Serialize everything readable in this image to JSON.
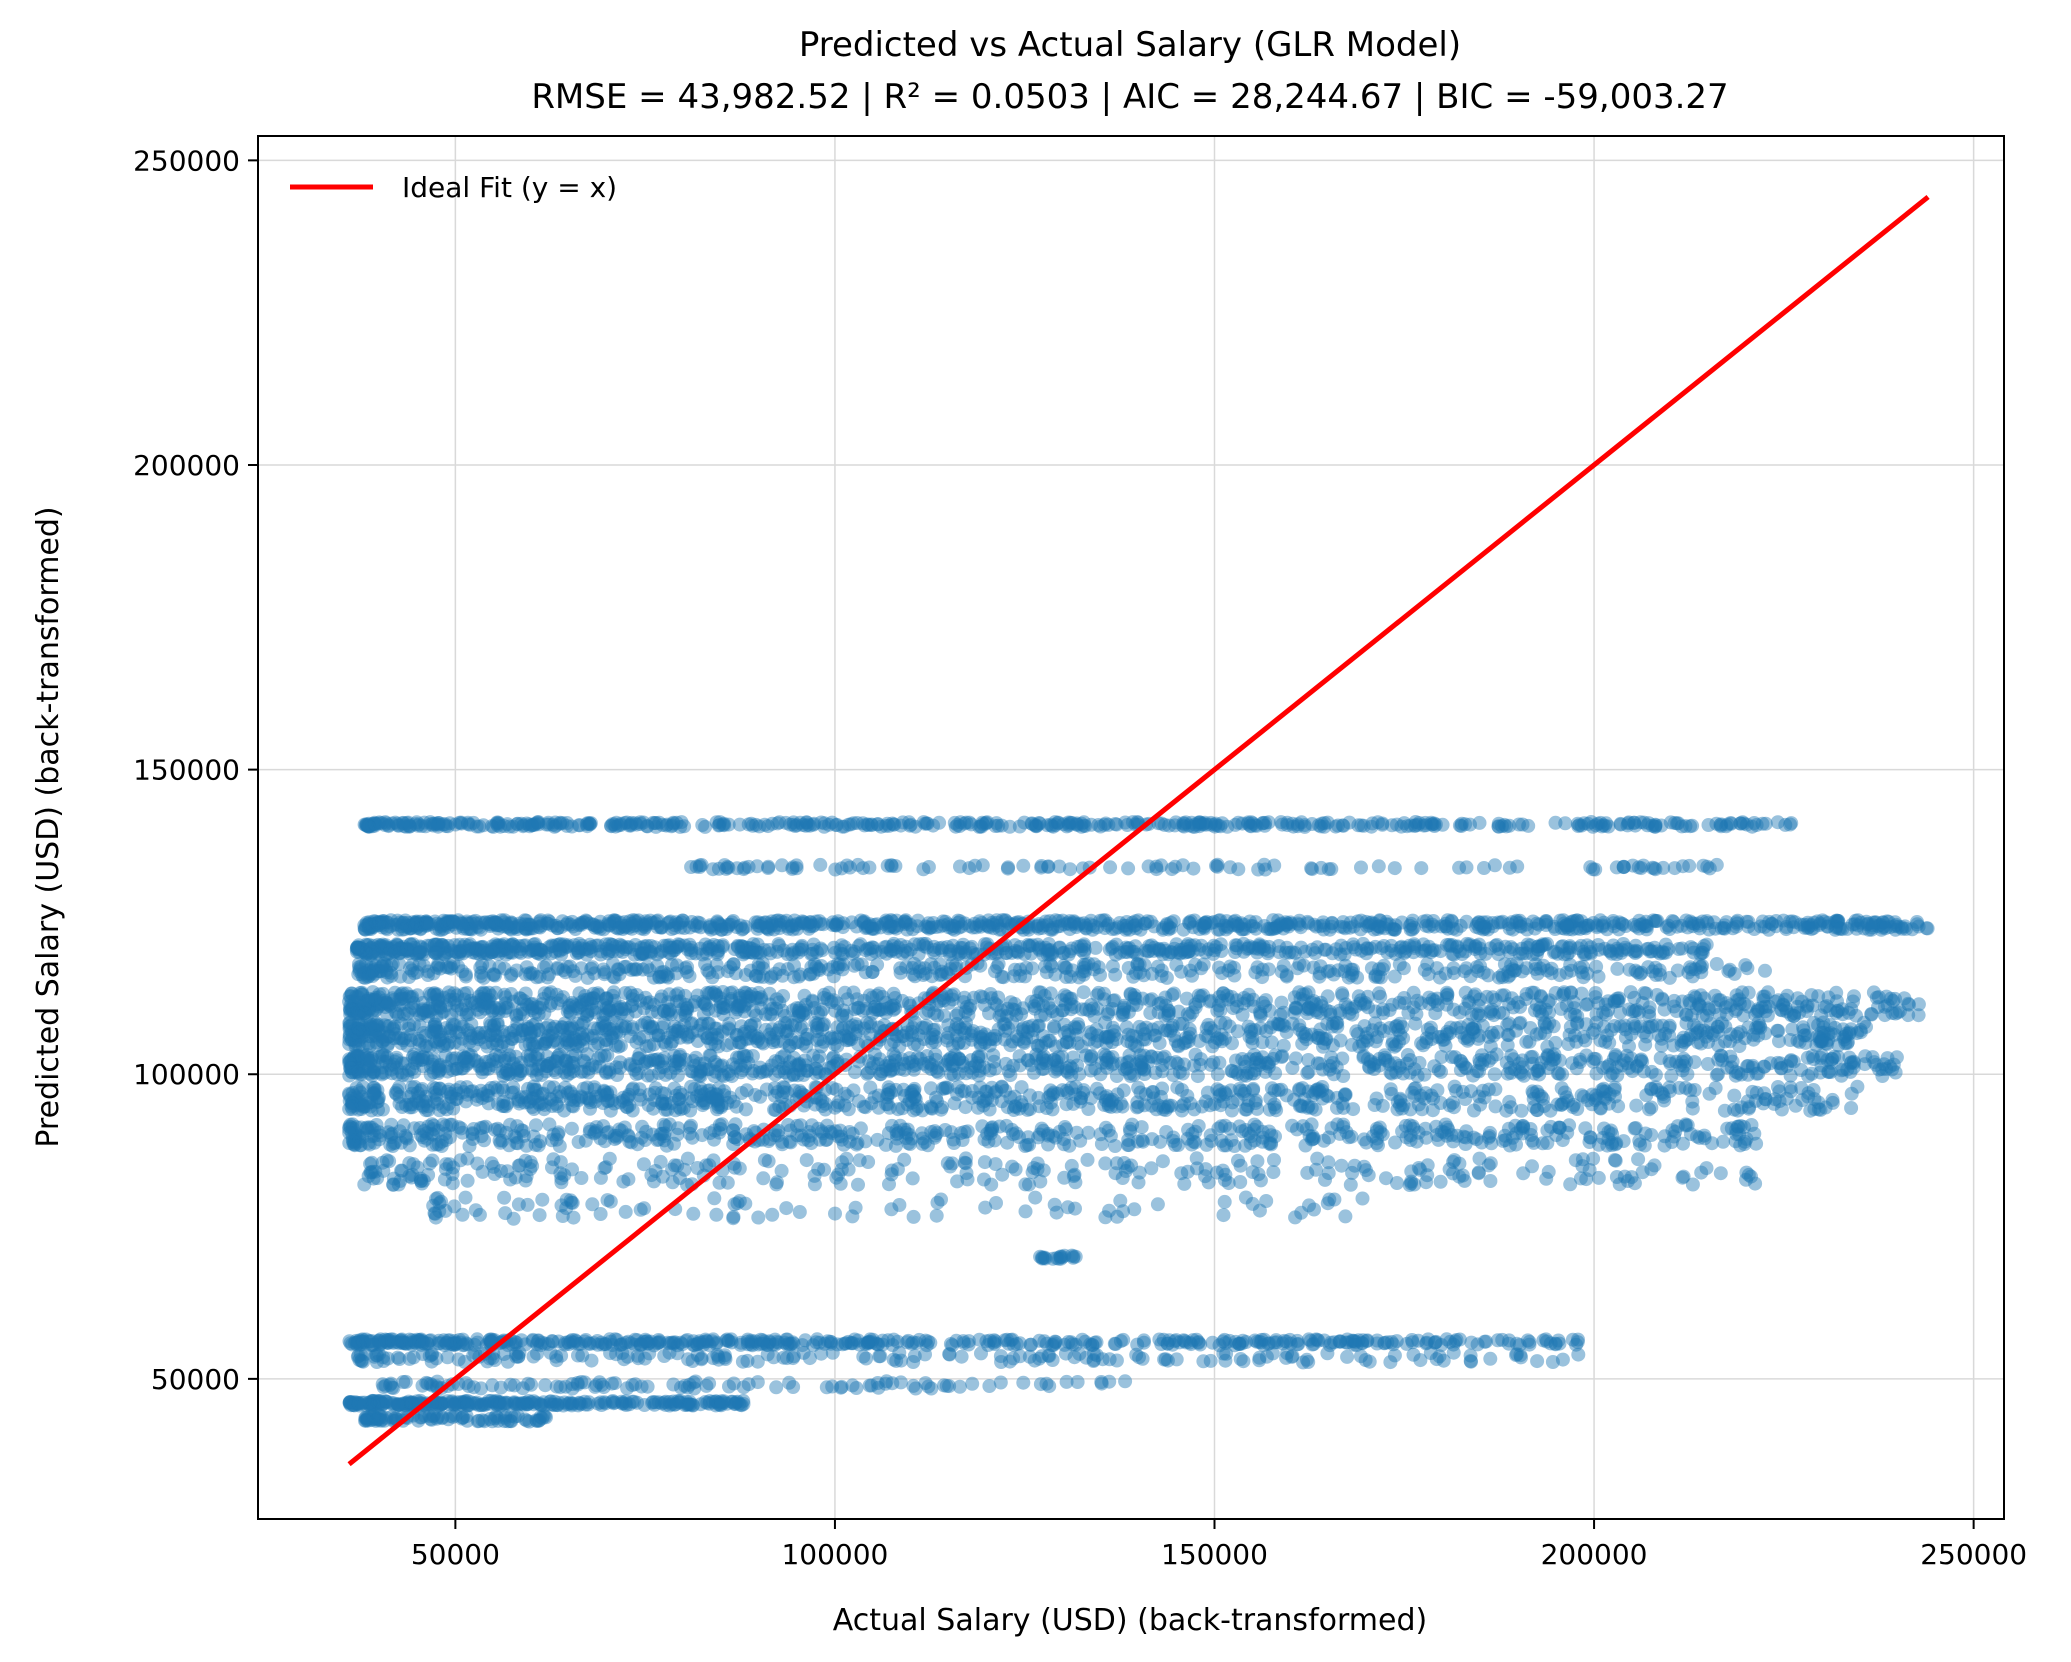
{
  "chart_data": {
    "type": "scatter",
    "title": "Predicted vs Actual Salary (GLR Model)",
    "subtitle": "RMSE = 43,982.52 | R² = 0.0503 | AIC = 28,244.67 | BIC = -59,003.27",
    "xlabel": "Actual Salary (USD) (back-transformed)",
    "ylabel": "Predicted Salary (USD) (back-transformed)",
    "xlim": [
      24000,
      254000
    ],
    "ylim": [
      27000,
      254000
    ],
    "x_ticks": [
      50000,
      100000,
      150000,
      200000,
      250000
    ],
    "y_ticks": [
      50000,
      100000,
      150000,
      200000,
      250000
    ],
    "x_tick_labels": [
      "50000",
      "100000",
      "150000",
      "200000",
      "250000"
    ],
    "y_tick_labels": [
      "50000",
      "100000",
      "150000",
      "200000",
      "250000"
    ],
    "grid": true,
    "legend": {
      "position": "top-left",
      "entries": [
        "Ideal Fit (y = x)"
      ]
    },
    "colors": {
      "points": "#1f77b4",
      "ideal_line": "#ff0000",
      "grid": "#d9d9d9"
    },
    "ideal_fit": {
      "x": [
        36000,
        244000
      ],
      "y": [
        36000,
        244000
      ]
    },
    "scatter_bands": [
      {
        "y_center": 141000,
        "y_spread": 400,
        "x_range": [
          38000,
          227000
        ],
        "density": 0.55
      },
      {
        "y_center": 134000,
        "y_spread": 400,
        "x_range": [
          81000,
          222000
        ],
        "density": 0.12
      },
      {
        "y_center": 124500,
        "y_spread": 800,
        "x_range": [
          38000,
          244000
        ],
        "density": 1.0
      },
      {
        "y_center": 120500,
        "y_spread": 900,
        "x_range": [
          37000,
          215000
        ],
        "density": 0.8
      },
      {
        "y_center": 117000,
        "y_spread": 1200,
        "x_range": [
          37000,
          223000
        ],
        "density": 0.45
      },
      {
        "y_center": 111500,
        "y_spread": 2000,
        "x_range": [
          36000,
          244000
        ],
        "density": 1.0
      },
      {
        "y_center": 106500,
        "y_spread": 2000,
        "x_range": [
          36000,
          236000
        ],
        "density": 1.0
      },
      {
        "y_center": 101500,
        "y_spread": 1800,
        "x_range": [
          36000,
          240000
        ],
        "density": 0.9
      },
      {
        "y_center": 96000,
        "y_spread": 2000,
        "x_range": [
          36000,
          235000
        ],
        "density": 0.8
      },
      {
        "y_center": 90000,
        "y_spread": 1800,
        "x_range": [
          36000,
          222000
        ],
        "density": 0.6
      },
      {
        "y_center": 84000,
        "y_spread": 2200,
        "x_range": [
          38000,
          222000
        ],
        "density": 0.3
      },
      {
        "y_center": 78000,
        "y_spread": 1800,
        "x_range": [
          47000,
          170000
        ],
        "density": 0.1
      },
      {
        "y_center": 70000,
        "y_spread": 300,
        "x_range": [
          127000,
          133000
        ],
        "density": 0.02
      },
      {
        "y_center": 56000,
        "y_spread": 500,
        "x_range": [
          36000,
          198000
        ],
        "density": 0.55
      },
      {
        "y_center": 53500,
        "y_spread": 800,
        "x_range": [
          37000,
          198000
        ],
        "density": 0.2
      },
      {
        "y_center": 49000,
        "y_spread": 600,
        "x_range": [
          40000,
          139000
        ],
        "density": 0.12
      },
      {
        "y_center": 46000,
        "y_spread": 400,
        "x_range": [
          36000,
          88000
        ],
        "density": 0.3
      },
      {
        "y_center": 43500,
        "y_spread": 500,
        "x_range": [
          38000,
          62000
        ],
        "density": 0.1
      }
    ]
  }
}
